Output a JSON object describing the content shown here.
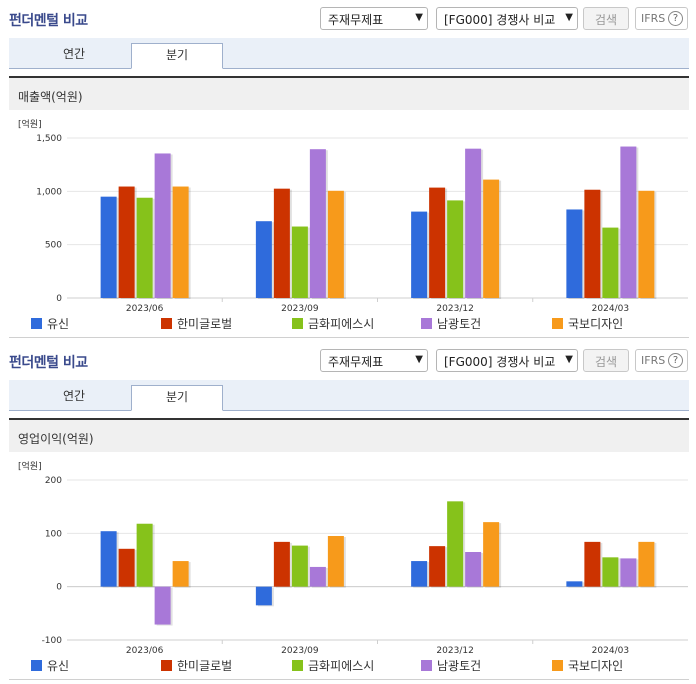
{
  "panels": [
    {
      "title": "펀더멘털 비교",
      "select1": "주재무제표",
      "select2": "[FG000] 경쟁사 비교",
      "search_label": "검색",
      "ifrs_label": "IFRS",
      "help_glyph": "?",
      "tabs": [
        {
          "label": "연간"
        },
        {
          "label": "분기"
        }
      ],
      "active_tab": 1,
      "chart_title": "매출액(억원)",
      "unit_label": "[억원]"
    },
    {
      "title": "펀더멘털 비교",
      "select1": "주재무제표",
      "select2": "[FG000] 경쟁사 비교",
      "search_label": "검색",
      "ifrs_label": "IFRS",
      "help_glyph": "?",
      "tabs": [
        {
          "label": "연간"
        },
        {
          "label": "분기"
        }
      ],
      "active_tab": 1,
      "chart_title": "영업이익(억원)",
      "unit_label": "[억원]"
    }
  ],
  "colors": [
    "#2f6bdc",
    "#cc3300",
    "#86c21b",
    "#a878d8",
    "#f79a1b"
  ],
  "chart_data": [
    {
      "type": "bar",
      "title": "매출액(억원)",
      "ylabel": "[억원]",
      "categories": [
        "2023/06",
        "2023/09",
        "2023/12",
        "2024/03"
      ],
      "ylim": [
        0,
        1500
      ],
      "yticks": [
        0,
        500,
        1000,
        1500
      ],
      "ytick_labels": [
        "0",
        "500",
        "1,000",
        "1,500"
      ],
      "legend": "bottom",
      "series": [
        {
          "name": "유신",
          "values": [
            950,
            720,
            810,
            830
          ]
        },
        {
          "name": "한미글로벌",
          "values": [
            1045,
            1025,
            1035,
            1015
          ]
        },
        {
          "name": "금화피에스시",
          "values": [
            940,
            670,
            915,
            660
          ]
        },
        {
          "name": "남광토건",
          "values": [
            1355,
            1395,
            1400,
            1420
          ]
        },
        {
          "name": "국보디자인",
          "values": [
            1045,
            1005,
            1110,
            1005
          ]
        }
      ]
    },
    {
      "type": "bar",
      "title": "영업이익(억원)",
      "ylabel": "[억원]",
      "categories": [
        "2023/06",
        "2023/09",
        "2023/12",
        "2024/03"
      ],
      "ylim": [
        -100,
        200
      ],
      "yticks": [
        -100,
        0,
        100,
        200
      ],
      "ytick_labels": [
        "-100",
        "0",
        "100",
        "200"
      ],
      "legend": "bottom",
      "series": [
        {
          "name": "유신",
          "values": [
            104,
            -35,
            48,
            10
          ]
        },
        {
          "name": "한미글로벌",
          "values": [
            71,
            84,
            76,
            84
          ]
        },
        {
          "name": "금화피에스시",
          "values": [
            118,
            77,
            160,
            55
          ]
        },
        {
          "name": "남광토건",
          "values": [
            -71,
            37,
            65,
            53
          ]
        },
        {
          "name": "국보디자인",
          "values": [
            48,
            95,
            121,
            84
          ]
        }
      ]
    }
  ]
}
